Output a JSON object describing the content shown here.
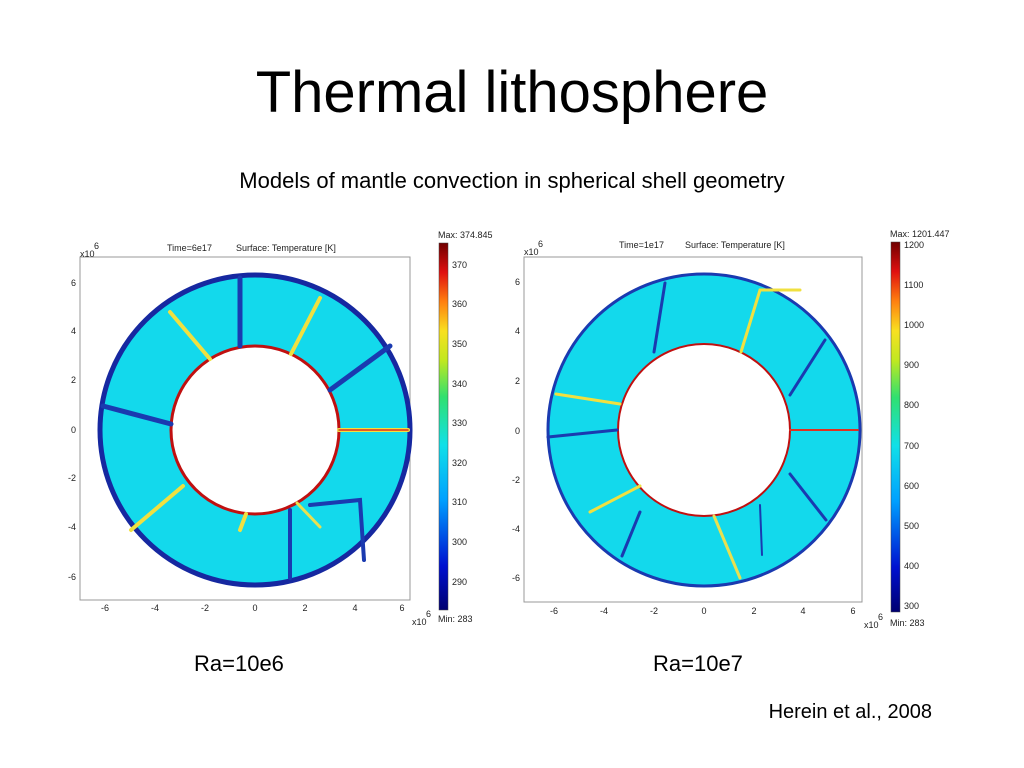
{
  "slide": {
    "title": "Thermal lithosphere",
    "subtitle": "Models of mantle convection in spherical shell geometry",
    "credit": "Herein et al., 2008"
  },
  "panels": [
    {
      "time_label": "Time=6e17",
      "surface_label": "Surface: Temperature [K]",
      "max_label": "Max: 374.845",
      "min_label": "Min: 283",
      "colorbar_ticks": [
        "370",
        "360",
        "350",
        "340",
        "330",
        "320",
        "310",
        "300",
        "290"
      ],
      "axis_ticks": [
        "-6",
        "-4",
        "-2",
        "0",
        "2",
        "4",
        "6"
      ],
      "axis_exponent": "x10",
      "axis_exponent_power": "6",
      "caption": "Ra=10e6"
    },
    {
      "time_label": "Time=1e17",
      "surface_label": "Surface: Temperature [K]",
      "max_label": "Max: 1201.447",
      "min_label": "Min: 283",
      "colorbar_ticks": [
        "1200",
        "1100",
        "1000",
        "900",
        "800",
        "700",
        "600",
        "500",
        "400",
        "300"
      ],
      "axis_ticks": [
        "-6",
        "-4",
        "-2",
        "0",
        "2",
        "4",
        "6"
      ],
      "axis_exponent": "x10",
      "axis_exponent_power": "6",
      "caption": "Ra=10e7"
    }
  ],
  "colors": {
    "interior": "#17e1ec",
    "cold": "#1b2a9a",
    "hot": "#d01010",
    "warm": "#f2e63a"
  }
}
